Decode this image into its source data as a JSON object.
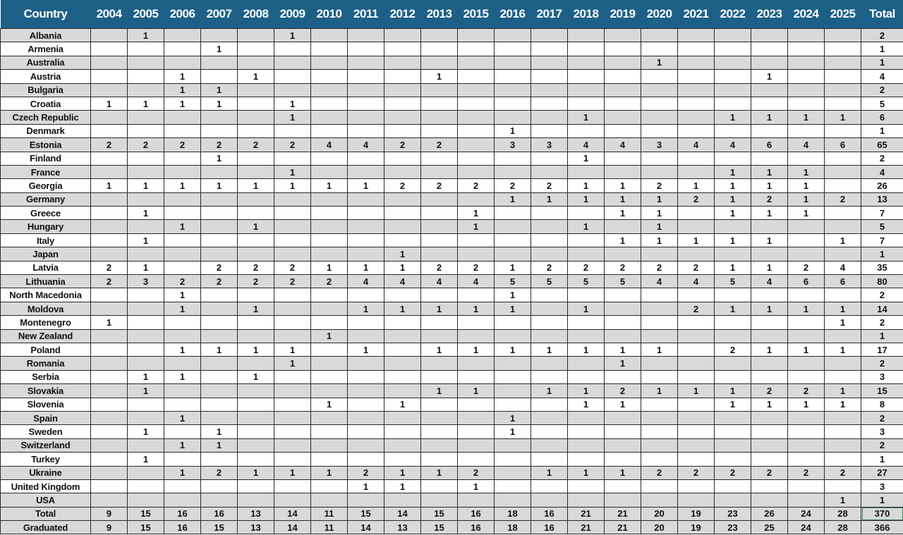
{
  "header": {
    "country_label": "Country",
    "years": [
      "2004",
      "2005",
      "2006",
      "2007",
      "2008",
      "2009",
      "2010",
      "2011",
      "2012",
      "2013",
      "2015",
      "2016",
      "2017",
      "2018",
      "2019",
      "2020",
      "2021",
      "2022",
      "2023",
      "2024",
      "2025"
    ],
    "total_label": "Total"
  },
  "colors": {
    "header_bg": "#1d6087",
    "header_text": "#ffffff",
    "stripe": "#d9d9d9"
  },
  "rows": [
    {
      "country": "Albania",
      "values": [
        "",
        "1",
        "",
        "",
        "",
        "1",
        "",
        "",
        "",
        "",
        "",
        "",
        "",
        "",
        "",
        "",
        "",
        "",
        "",
        "",
        ""
      ],
      "total": "2"
    },
    {
      "country": "Armenia",
      "values": [
        "",
        "",
        "",
        "1",
        "",
        "",
        "",
        "",
        "",
        "",
        "",
        "",
        "",
        "",
        "",
        "",
        "",
        "",
        "",
        "",
        ""
      ],
      "total": "1"
    },
    {
      "country": "Australia",
      "values": [
        "",
        "",
        "",
        "",
        "",
        "",
        "",
        "",
        "",
        "",
        "",
        "",
        "",
        "",
        "",
        "1",
        "",
        "",
        "",
        "",
        ""
      ],
      "total": "1"
    },
    {
      "country": "Austria",
      "values": [
        "",
        "",
        "1",
        "",
        "1",
        "",
        "",
        "",
        "",
        "1",
        "",
        "",
        "",
        "",
        "",
        "",
        "",
        "",
        "1",
        "",
        ""
      ],
      "total": "4"
    },
    {
      "country": "Bulgaria",
      "values": [
        "",
        "",
        "1",
        "1",
        "",
        "",
        "",
        "",
        "",
        "",
        "",
        "",
        "",
        "",
        "",
        "",
        "",
        "",
        "",
        "",
        ""
      ],
      "total": "2"
    },
    {
      "country": "Croatia",
      "values": [
        "1",
        "1",
        "1",
        "1",
        "",
        "1",
        "",
        "",
        "",
        "",
        "",
        "",
        "",
        "",
        "",
        "",
        "",
        "",
        "",
        "",
        ""
      ],
      "total": "5"
    },
    {
      "country": "Czech Republic",
      "values": [
        "",
        "",
        "",
        "",
        "",
        "1",
        "",
        "",
        "",
        "",
        "",
        "",
        "",
        "1",
        "",
        "",
        "",
        "1",
        "1",
        "1",
        "1"
      ],
      "total": "6"
    },
    {
      "country": "Denmark",
      "values": [
        "",
        "",
        "",
        "",
        "",
        "",
        "",
        "",
        "",
        "",
        "",
        "1",
        "",
        "",
        "",
        "",
        "",
        "",
        "",
        "",
        ""
      ],
      "total": "1"
    },
    {
      "country": "Estonia",
      "values": [
        "2",
        "2",
        "2",
        "2",
        "2",
        "2",
        "4",
        "4",
        "2",
        "2",
        "",
        "3",
        "3",
        "4",
        "4",
        "3",
        "4",
        "4",
        "6",
        "4",
        "6"
      ],
      "total": "65"
    },
    {
      "country": "Finland",
      "values": [
        "",
        "",
        "",
        "1",
        "",
        "",
        "",
        "",
        "",
        "",
        "",
        "",
        "",
        "1",
        "",
        "",
        "",
        "",
        "",
        "",
        ""
      ],
      "total": "2"
    },
    {
      "country": "France",
      "values": [
        "",
        "",
        "",
        "",
        "",
        "1",
        "",
        "",
        "",
        "",
        "",
        "",
        "",
        "",
        "",
        "",
        "",
        "1",
        "1",
        "1",
        ""
      ],
      "total": "4"
    },
    {
      "country": "Georgia",
      "values": [
        "1",
        "1",
        "1",
        "1",
        "1",
        "1",
        "1",
        "1",
        "2",
        "2",
        "2",
        "2",
        "2",
        "1",
        "1",
        "2",
        "1",
        "1",
        "1",
        "1",
        ""
      ],
      "total": "26"
    },
    {
      "country": "Germany",
      "values": [
        "",
        "",
        "",
        "",
        "",
        "",
        "",
        "",
        "",
        "",
        "",
        "1",
        "1",
        "1",
        "1",
        "1",
        "2",
        "1",
        "2",
        "1",
        "2"
      ],
      "total": "13"
    },
    {
      "country": "Greece",
      "values": [
        "",
        "1",
        "",
        "",
        "",
        "",
        "",
        "",
        "",
        "",
        "1",
        "",
        "",
        "",
        "1",
        "1",
        "",
        "1",
        "1",
        "1",
        ""
      ],
      "total": "7"
    },
    {
      "country": "Hungary",
      "values": [
        "",
        "",
        "1",
        "",
        "1",
        "",
        "",
        "",
        "",
        "",
        "1",
        "",
        "",
        "1",
        "",
        "1",
        "",
        "",
        "",
        "",
        ""
      ],
      "total": "5"
    },
    {
      "country": "Italy",
      "values": [
        "",
        "1",
        "",
        "",
        "",
        "",
        "",
        "",
        "",
        "",
        "",
        "",
        "",
        "",
        "1",
        "1",
        "1",
        "1",
        "1",
        "",
        "1"
      ],
      "total": "7"
    },
    {
      "country": "Japan",
      "values": [
        "",
        "",
        "",
        "",
        "",
        "",
        "",
        "",
        "1",
        "",
        "",
        "",
        "",
        "",
        "",
        "",
        "",
        "",
        "",
        "",
        ""
      ],
      "total": "1"
    },
    {
      "country": "Latvia",
      "values": [
        "2",
        "1",
        "",
        "2",
        "2",
        "2",
        "1",
        "1",
        "1",
        "2",
        "2",
        "1",
        "2",
        "2",
        "2",
        "2",
        "2",
        "1",
        "1",
        "2",
        "4"
      ],
      "total": "35"
    },
    {
      "country": "Lithuania",
      "values": [
        "2",
        "3",
        "2",
        "2",
        "2",
        "2",
        "2",
        "4",
        "4",
        "4",
        "4",
        "5",
        "5",
        "5",
        "5",
        "4",
        "4",
        "5",
        "4",
        "6",
        "6"
      ],
      "total": "80"
    },
    {
      "country": "North Macedonia",
      "values": [
        "",
        "",
        "1",
        "",
        "",
        "",
        "",
        "",
        "",
        "",
        "",
        "1",
        "",
        "",
        "",
        "",
        "",
        "",
        "",
        "",
        ""
      ],
      "total": "2"
    },
    {
      "country": "Moldova",
      "values": [
        "",
        "",
        "1",
        "",
        "1",
        "",
        "",
        "1",
        "1",
        "1",
        "1",
        "1",
        "",
        "1",
        "",
        "",
        "2",
        "1",
        "1",
        "1",
        "1"
      ],
      "total": "14"
    },
    {
      "country": "Montenegro",
      "values": [
        "1",
        "",
        "",
        "",
        "",
        "",
        "",
        "",
        "",
        "",
        "",
        "",
        "",
        "",
        "",
        "",
        "",
        "",
        "",
        "",
        "1"
      ],
      "total": "2"
    },
    {
      "country": "New Zealand",
      "values": [
        "",
        "",
        "",
        "",
        "",
        "",
        "1",
        "",
        "",
        "",
        "",
        "",
        "",
        "",
        "",
        "",
        "",
        "",
        "",
        "",
        ""
      ],
      "total": "1"
    },
    {
      "country": "Poland",
      "values": [
        "",
        "",
        "1",
        "1",
        "1",
        "1",
        "",
        "1",
        "",
        "1",
        "1",
        "1",
        "1",
        "1",
        "1",
        "1",
        "",
        "2",
        "1",
        "1",
        "1"
      ],
      "total": "17"
    },
    {
      "country": "Romania",
      "values": [
        "",
        "",
        "",
        "",
        "",
        "1",
        "",
        "",
        "",
        "",
        "",
        "",
        "",
        "",
        "1",
        "",
        "",
        "",
        "",
        "",
        ""
      ],
      "total": "2"
    },
    {
      "country": "Serbia",
      "values": [
        "",
        "1",
        "1",
        "",
        "1",
        "",
        "",
        "",
        "",
        "",
        "",
        "",
        "",
        "",
        "",
        "",
        "",
        "",
        "",
        "",
        ""
      ],
      "total": "3"
    },
    {
      "country": "Slovakia",
      "values": [
        "",
        "1",
        "",
        "",
        "",
        "",
        "",
        "",
        "",
        "1",
        "1",
        "",
        "1",
        "1",
        "2",
        "1",
        "1",
        "1",
        "2",
        "2",
        "1"
      ],
      "total": "15"
    },
    {
      "country": "Slovenia",
      "values": [
        "",
        "",
        "",
        "",
        "",
        "",
        "1",
        "",
        "1",
        "",
        "",
        "",
        "",
        "1",
        "1",
        "",
        "",
        "1",
        "1",
        "1",
        "1"
      ],
      "total": "8"
    },
    {
      "country": "Spain",
      "values": [
        "",
        "",
        "1",
        "",
        "",
        "",
        "",
        "",
        "",
        "",
        "",
        "1",
        "",
        "",
        "",
        "",
        "",
        "",
        "",
        "",
        ""
      ],
      "total": "2"
    },
    {
      "country": "Sweden",
      "values": [
        "",
        "1",
        "",
        "1",
        "",
        "",
        "",
        "",
        "",
        "",
        "",
        "1",
        "",
        "",
        "",
        "",
        "",
        "",
        "",
        "",
        ""
      ],
      "total": "3"
    },
    {
      "country": "Switzerland",
      "values": [
        "",
        "",
        "1",
        "1",
        "",
        "",
        "",
        "",
        "",
        "",
        "",
        "",
        "",
        "",
        "",
        "",
        "",
        "",
        "",
        "",
        ""
      ],
      "total": "2"
    },
    {
      "country": "Turkey",
      "values": [
        "",
        "1",
        "",
        "",
        "",
        "",
        "",
        "",
        "",
        "",
        "",
        "",
        "",
        "",
        "",
        "",
        "",
        "",
        "",
        "",
        ""
      ],
      "total": "1"
    },
    {
      "country": "Ukraine",
      "values": [
        "",
        "",
        "1",
        "2",
        "1",
        "1",
        "1",
        "2",
        "1",
        "1",
        "2",
        "",
        "1",
        "1",
        "1",
        "2",
        "2",
        "2",
        "2",
        "2",
        "2"
      ],
      "total": "27"
    },
    {
      "country": "United Kingdom",
      "values": [
        "",
        "",
        "",
        "",
        "",
        "",
        "",
        "1",
        "1",
        "",
        "1",
        "",
        "",
        "",
        "",
        "",
        "",
        "",
        "",
        "",
        ""
      ],
      "total": "3"
    },
    {
      "country": "USA",
      "values": [
        "",
        "",
        "",
        "",
        "",
        "",
        "",
        "",
        "",
        "",
        "",
        "",
        "",
        "",
        "",
        "",
        "",
        "",
        "",
        "",
        "1"
      ],
      "total": "1"
    }
  ],
  "summary": [
    {
      "label": "Total",
      "values": [
        "9",
        "15",
        "16",
        "16",
        "13",
        "14",
        "11",
        "15",
        "14",
        "15",
        "16",
        "18",
        "16",
        "21",
        "21",
        "20",
        "19",
        "23",
        "26",
        "24",
        "28"
      ],
      "total": "370"
    },
    {
      "label": "Graduated",
      "values": [
        "9",
        "15",
        "16",
        "15",
        "13",
        "14",
        "11",
        "14",
        "13",
        "15",
        "16",
        "18",
        "16",
        "21",
        "21",
        "20",
        "19",
        "23",
        "25",
        "24",
        "28"
      ],
      "total": "366"
    }
  ]
}
